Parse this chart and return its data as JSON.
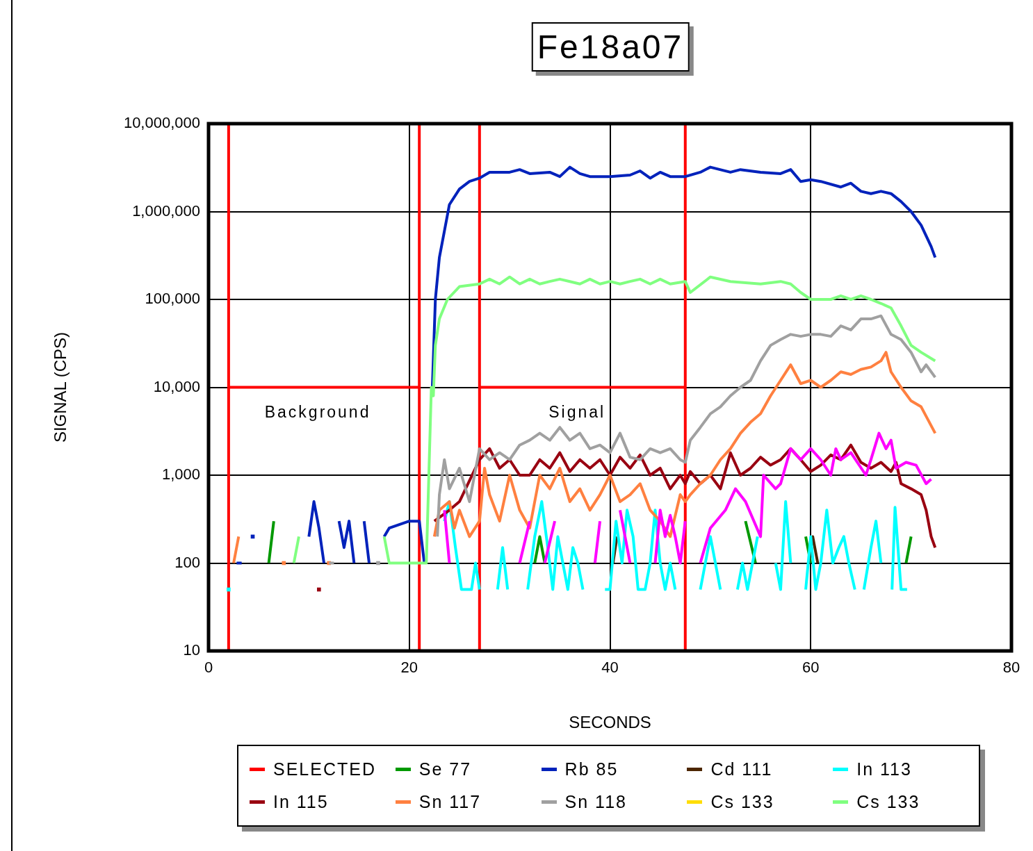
{
  "chart_data": {
    "type": "line",
    "title": "Fe18a07",
    "xlabel": "SECONDS",
    "ylabel": "SIGNAL (CPS)",
    "log": "y",
    "grid": true,
    "legend": "bottom",
    "xlim": [
      0,
      80
    ],
    "xticks": [
      0,
      20,
      40,
      60,
      80
    ],
    "ylim": [
      10,
      10000000
    ],
    "yticks": [
      10,
      100,
      {
        "value": 1000,
        "label": "1,000"
      },
      {
        "value": 10000,
        "label": "10,000"
      },
      {
        "value": 100000,
        "label": "100,000"
      },
      {
        "value": 1000000,
        "label": "1,000,000"
      },
      {
        "value": 10000000,
        "label": "10,000,000"
      }
    ],
    "annotations": [
      "Background",
      "Signal"
    ],
    "series": [
      {
        "name": "SELECTED",
        "color": "#ff0000",
        "x": [
          2,
          2,
          2,
          21,
          21,
          21,
          24,
          27,
          27,
          27,
          47.5,
          47.5,
          47.5
        ],
        "values": [
          10,
          10000000,
          10000,
          10000,
          10,
          10000000,
          null,
          10,
          10000000,
          10000,
          10000,
          10,
          10000000
        ]
      },
      {
        "name": "Se 77",
        "color": "#009900",
        "x": [
          6,
          6.5,
          7,
          32.5,
          33,
          33.5,
          40,
          53.5,
          54.5,
          55,
          59.5,
          60,
          62,
          69.5,
          70
        ],
        "values": [
          100,
          300,
          null,
          100,
          200,
          100,
          null,
          300,
          100,
          null,
          200,
          100,
          null,
          100,
          200
        ]
      },
      {
        "name": "Rb 85",
        "color": "#0022bb",
        "x": [
          2.8,
          3.3,
          4,
          4.4,
          5,
          10,
          10.5,
          11,
          11.5,
          12,
          13,
          13.5,
          14,
          14.5,
          15,
          15.5,
          16,
          17,
          17.5,
          18,
          20,
          21,
          21.5,
          22,
          22.3,
          22.6,
          23,
          23.5,
          24,
          25,
          26,
          27,
          28,
          30,
          31,
          32,
          34,
          35,
          36,
          37,
          38,
          40,
          42,
          43,
          44,
          45,
          46,
          47.5,
          49,
          50,
          52,
          53,
          55,
          57,
          58,
          59,
          60,
          61,
          63,
          64,
          65,
          66,
          67,
          68,
          69,
          70,
          71,
          72,
          72.4
        ],
        "values": [
          100,
          100,
          null,
          200,
          null,
          200,
          500,
          250,
          100,
          null,
          300,
          150,
          300,
          100,
          null,
          300,
          100,
          null,
          200,
          250,
          300,
          300,
          100,
          null,
          10000,
          100000,
          300000,
          600000,
          1200000,
          1800000,
          2200000,
          2400000,
          2800000,
          2800000,
          3000000,
          2700000,
          2800000,
          2500000,
          3200000,
          2700000,
          2500000,
          2500000,
          2600000,
          2900000,
          2400000,
          2800000,
          2500000,
          2500000,
          2800000,
          3200000,
          2800000,
          3000000,
          2800000,
          2700000,
          3000000,
          2200000,
          2300000,
          2200000,
          1900000,
          2100000,
          1700000,
          1600000,
          1700000,
          1600000,
          1300000,
          1000000,
          700000,
          400000,
          300000
        ]
      },
      {
        "name": "Cd 111",
        "color": "#4d2600",
        "x": [
          40.3,
          40.7,
          41.5,
          59.8,
          60.2,
          60.7
        ],
        "values": [
          100,
          200,
          null,
          100,
          200,
          100
        ]
      },
      {
        "name": "In 113",
        "color": "#00ffff",
        "x": [
          2,
          2.5,
          23.5,
          24,
          24.6,
          25.2,
          26.2,
          26.6,
          27,
          27.5,
          28.8,
          29.3,
          29.8,
          30.5,
          31.8,
          32.5,
          33.2,
          33.8,
          34.3,
          34.8,
          35.3,
          35.8,
          36.3,
          36.8,
          37.3,
          38,
          39.5,
          40,
          40.6,
          41.2,
          41.7,
          42.3,
          42.8,
          43.5,
          44,
          44.5,
          45,
          45.5,
          46,
          46.5,
          47,
          49,
          49.5,
          50,
          50.5,
          51,
          51.5,
          52.7,
          53.2,
          53.7,
          54.2,
          54.7,
          55.2,
          56.5,
          57,
          57.5,
          58,
          58.5,
          59.5,
          60,
          60.5,
          61,
          61.6,
          62.2,
          62.8,
          63.3,
          63.8,
          64.4,
          65,
          65.3,
          66,
          66.5,
          67,
          67.5,
          68.1,
          68.4,
          69,
          69.6
        ],
        "values": [
          50,
          null,
          300,
          500,
          150,
          50,
          50,
          100,
          50,
          null,
          50,
          150,
          50,
          null,
          50,
          200,
          500,
          150,
          50,
          200,
          100,
          50,
          150,
          100,
          50,
          null,
          50,
          50,
          300,
          100,
          400,
          200,
          50,
          50,
          100,
          400,
          100,
          50,
          100,
          50,
          null,
          50,
          100,
          200,
          100,
          50,
          null,
          50,
          100,
          50,
          100,
          200,
          null,
          100,
          50,
          500,
          100,
          null,
          50,
          200,
          50,
          100,
          400,
          100,
          150,
          200,
          100,
          50,
          null,
          50,
          150,
          300,
          100,
          null,
          50,
          430,
          50,
          50
        ]
      },
      {
        "name": "In 115",
        "color": "#990011",
        "x": [
          11,
          11.5,
          22.5,
          24,
          25,
          27,
          28,
          29,
          30,
          31,
          32,
          33,
          34,
          35,
          36,
          37,
          38,
          39,
          40,
          41,
          42,
          43,
          44,
          45,
          46,
          47,
          47.5,
          48,
          49,
          50,
          51,
          52,
          53,
          54,
          55,
          56,
          57,
          58,
          59,
          60,
          61,
          62,
          63,
          64,
          65,
          66,
          67,
          68,
          68.5,
          69,
          70,
          71,
          71.5,
          72,
          72.4
        ],
        "values": [
          50,
          null,
          300,
          400,
          500,
          1500,
          2000,
          1200,
          1500,
          1000,
          1000,
          1500,
          1200,
          1800,
          1100,
          1500,
          1200,
          1500,
          1000,
          1600,
          1200,
          1700,
          1000,
          1200,
          700,
          1000,
          800,
          1100,
          800,
          1000,
          700,
          1800,
          1000,
          1200,
          1600,
          1300,
          1500,
          2000,
          1500,
          1100,
          1300,
          1700,
          1500,
          2200,
          1400,
          1200,
          1400,
          1100,
          1400,
          800,
          700,
          600,
          400,
          200,
          150
        ]
      },
      {
        "name": "Sn 117",
        "color": "#ff8040",
        "x": [
          2.5,
          3,
          3.5,
          7.5,
          8,
          12,
          12.5,
          22.5,
          23,
          24,
          24.5,
          25,
          26,
          27,
          27.5,
          28,
          29,
          30,
          31,
          32,
          33,
          34,
          35,
          36,
          37,
          38,
          39,
          40,
          41,
          42,
          43,
          44,
          45,
          46,
          47,
          47.5,
          48,
          49,
          50,
          51,
          52,
          53,
          54,
          55,
          56,
          57,
          58,
          59,
          60,
          61,
          62,
          63,
          64,
          65,
          66,
          67,
          67.5,
          68,
          69,
          70,
          71,
          72.4
        ],
        "values": [
          100,
          200,
          null,
          100,
          null,
          100,
          null,
          200,
          400,
          500,
          250,
          400,
          200,
          300,
          1200,
          600,
          300,
          1000,
          400,
          250,
          1000,
          700,
          1200,
          500,
          700,
          400,
          600,
          1000,
          500,
          600,
          800,
          400,
          300,
          200,
          600,
          500,
          600,
          800,
          1000,
          1500,
          2000,
          3000,
          4000,
          5000,
          8000,
          12000,
          18000,
          11000,
          12000,
          10000,
          12000,
          15000,
          14000,
          16000,
          17000,
          20000,
          25000,
          15000,
          10000,
          7000,
          6000,
          3000
        ]
      },
      {
        "name": "Sn 118",
        "color": "#a0a0a0",
        "x": [
          12,
          12.5,
          13,
          16.9,
          17.3,
          22.8,
          23,
          23.5,
          24,
          25,
          26,
          27,
          28,
          29,
          30,
          31,
          32,
          33,
          34,
          35,
          36,
          37,
          38,
          39,
          40,
          41,
          42,
          43,
          44,
          45,
          46,
          47,
          47.5,
          48,
          49,
          50,
          51,
          52,
          53,
          54,
          55,
          56,
          57,
          58,
          59,
          60,
          61,
          62,
          63,
          64,
          65,
          66,
          67,
          68,
          69,
          70,
          71,
          71.5,
          72.4
        ],
        "values": [
          100,
          100,
          null,
          100,
          null,
          200,
          600,
          1500,
          700,
          1200,
          500,
          2000,
          1500,
          1800,
          1500,
          2200,
          2500,
          3000,
          2500,
          3500,
          2500,
          3000,
          2000,
          2200,
          1800,
          3000,
          1600,
          1500,
          2000,
          1800,
          2000,
          1500,
          1400,
          2500,
          3500,
          5000,
          6000,
          8000,
          10000,
          12000,
          20000,
          30000,
          35000,
          40000,
          38000,
          40000,
          40000,
          38000,
          50000,
          45000,
          60000,
          60000,
          65000,
          40000,
          35000,
          25000,
          15000,
          18000,
          13000
        ]
      },
      {
        "name": "Cs 133",
        "color": "#ffdd00"
      },
      {
        "name": "Cs 133",
        "color": "#80ff80",
        "x": [
          8.5,
          9,
          9.5,
          17.5,
          18,
          21.7,
          22.2,
          22.4,
          22.6,
          23,
          23.8,
          25,
          27,
          28,
          29,
          30,
          31,
          32,
          33,
          34,
          35,
          36,
          37,
          38,
          39,
          40,
          41,
          42,
          43,
          44,
          45,
          46,
          47.5,
          48,
          50,
          52,
          55,
          57,
          58,
          59,
          60,
          61,
          62,
          63,
          64,
          65,
          66,
          67,
          68,
          69,
          70,
          71,
          72.4
        ],
        "values": [
          100,
          200,
          null,
          200,
          100,
          100,
          10000,
          8000,
          30000,
          60000,
          100000,
          140000,
          150000,
          170000,
          150000,
          180000,
          150000,
          170000,
          150000,
          160000,
          170000,
          160000,
          150000,
          170000,
          150000,
          160000,
          150000,
          160000,
          170000,
          150000,
          170000,
          150000,
          160000,
          120000,
          180000,
          160000,
          150000,
          160000,
          150000,
          120000,
          100000,
          100000,
          100000,
          110000,
          100000,
          110000,
          100000,
          90000,
          80000,
          50000,
          30000,
          25000,
          20000
        ]
      },
      {
        "color": "#ff00ff",
        "x": [
          23.5,
          24,
          24.5,
          31,
          32,
          32.5,
          33.5,
          34.5,
          35,
          38.5,
          39,
          39.5,
          41,
          41.5,
          42,
          43,
          44.5,
          45,
          45.5,
          46,
          46.5,
          47,
          47.5,
          48,
          49,
          50,
          51.5,
          52.5,
          53.5,
          55,
          55.3,
          56.5,
          57,
          58,
          59,
          60,
          61,
          62,
          62.5,
          63,
          64,
          65.5,
          66,
          66.8,
          67.5,
          68,
          68.5,
          69.5,
          70.5,
          71.5,
          72
        ],
        "values": [
          400,
          100,
          null,
          100,
          300,
          null,
          100,
          300,
          null,
          100,
          300,
          null,
          400,
          200,
          100,
          null,
          100,
          400,
          200,
          350,
          200,
          100,
          300,
          null,
          100,
          250,
          400,
          700,
          500,
          200,
          1000,
          700,
          800,
          2000,
          1500,
          2000,
          1500,
          1000,
          2000,
          1500,
          1800,
          1000,
          1500,
          3000,
          2000,
          2500,
          1200,
          1400,
          1300,
          800,
          900
        ]
      }
    ]
  }
}
